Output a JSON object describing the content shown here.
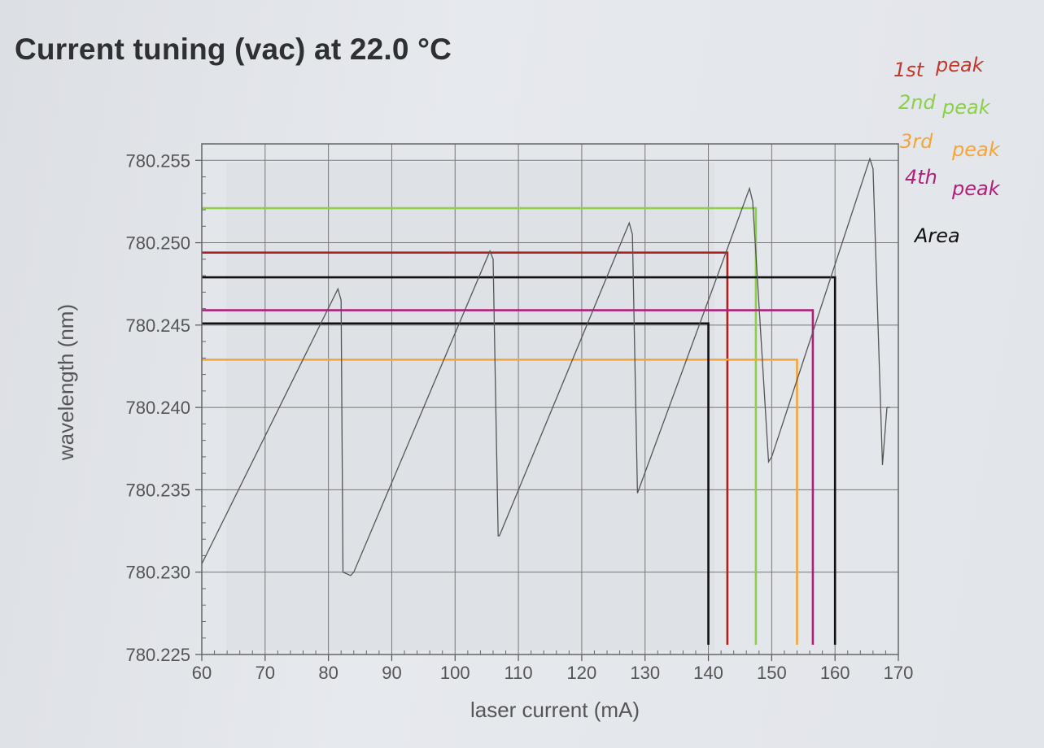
{
  "title": "Current tuning (vac) at 22.0 °C",
  "chart_data": {
    "type": "line",
    "title": "Current tuning (vac) at 22.0 °C",
    "xlabel": "laser current (mA)",
    "ylabel": "wavelength (nm)",
    "xlim": [
      60,
      170
    ],
    "ylim": [
      780.225,
      780.256
    ],
    "x_ticks": [
      "60",
      "70",
      "80",
      "90",
      "100",
      "110",
      "120",
      "130",
      "140",
      "150",
      "160",
      "170"
    ],
    "y_ticks": [
      "780.225",
      "780.230",
      "780.235",
      "780.240",
      "780.245",
      "780.250",
      "780.255"
    ],
    "grid": true,
    "series": [
      {
        "x": [
          60,
          81.5,
          82,
          82.3,
          83.5,
          84,
          105.5,
          106,
          106.8,
          107,
          127.5,
          128,
          128.8,
          129,
          146.5,
          147,
          149.5,
          150,
          165.5,
          166,
          167.5,
          168.2,
          168.7
        ],
        "y": [
          780.2305,
          780.2472,
          780.2465,
          780.23,
          780.2298,
          780.23,
          780.2495,
          780.249,
          780.2322,
          780.2322,
          780.2512,
          780.2505,
          780.2348,
          780.235,
          780.2533,
          780.2525,
          780.2367,
          780.237,
          780.2551,
          780.2545,
          780.2365,
          780.24,
          780.24
        ],
        "color": "#555555"
      }
    ],
    "annotations": [
      {
        "name": "1st peak",
        "color": "#b02020",
        "wavelength": 780.2494,
        "current": 143
      },
      {
        "name": "2nd peak",
        "color": "#8cd048",
        "wavelength": 780.2521,
        "current": 147.5
      },
      {
        "name": "3rd peak",
        "color": "#f4a53a",
        "wavelength": 780.2429,
        "current": 154
      },
      {
        "name": "4th peak",
        "color": "#b0207a",
        "wavelength": 780.2459,
        "current": 156.5
      },
      {
        "name": "Area",
        "color": "#111111",
        "wavelength": 780.2451,
        "current": 140
      },
      {
        "name": "Area",
        "color": "#111111",
        "wavelength": 780.2479,
        "current": 160
      }
    ]
  },
  "legend": [
    {
      "ordinal": "1st",
      "word": "peak",
      "color": "#c0392b"
    },
    {
      "ordinal": "2nd",
      "word": "peak",
      "color": "#8cd048"
    },
    {
      "ordinal": "3rd",
      "word": "peak",
      "color": "#f4a53a"
    },
    {
      "ordinal": "4th",
      "word": "peak",
      "color": "#b0207a"
    },
    {
      "ordinal": "",
      "word": "Area",
      "color": "#111111"
    }
  ]
}
